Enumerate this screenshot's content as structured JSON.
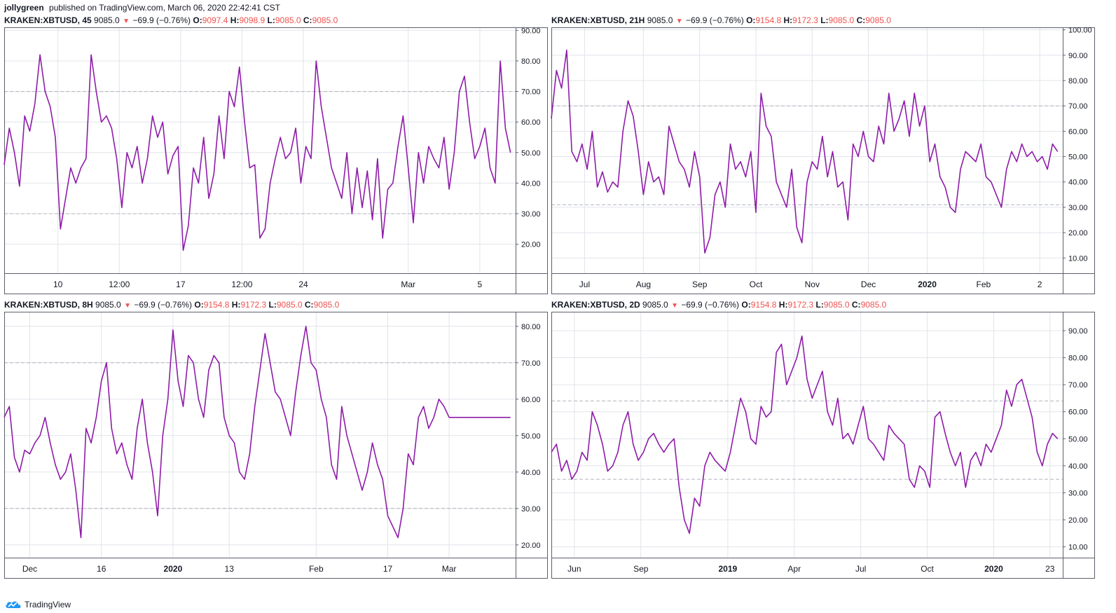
{
  "header": {
    "author": "jollygreen",
    "published_text": "published on TradingView.com, March 06, 2020 22:42:41 CST"
  },
  "footer": {
    "brand": "TradingView"
  },
  "colors": {
    "line": "#8e1ca8",
    "grid": "#e1e4ea",
    "level": "#b0b4bd",
    "down": "#ef5350",
    "frame": "#5d606b"
  },
  "chart_data": [
    {
      "type": "line",
      "title": "KRAKEN:XBTUSD, 45",
      "legend": {
        "price": "9085.0",
        "change": "−69.9 (−0.76%)",
        "o": "9097.4",
        "h": "9098.9",
        "l": "9085.0",
        "c": "9085.0"
      },
      "xticks": [
        {
          "label": "10",
          "x": 0.105
        },
        {
          "label": "12:00",
          "x": 0.225
        },
        {
          "label": "17",
          "x": 0.345
        },
        {
          "label": "12:00",
          "x": 0.465
        },
        {
          "label": "24",
          "x": 0.585
        },
        {
          "label": "Mar",
          "x": 0.79
        },
        {
          "label": "5",
          "x": 0.93
        }
      ],
      "yticks": [
        20,
        30,
        40,
        50,
        60,
        70,
        80,
        90
      ],
      "ylim": [
        10.5,
        91
      ],
      "levels": [
        70,
        30
      ],
      "x": [
        0,
        0.01,
        0.02,
        0.03,
        0.04,
        0.05,
        0.06,
        0.07,
        0.08,
        0.09,
        0.1,
        0.11,
        0.12,
        0.13,
        0.14,
        0.15,
        0.16,
        0.17,
        0.18,
        0.19,
        0.2,
        0.21,
        0.22,
        0.23,
        0.24,
        0.25,
        0.26,
        0.27,
        0.28,
        0.29,
        0.3,
        0.31,
        0.32,
        0.33,
        0.34,
        0.35,
        0.36,
        0.37,
        0.38,
        0.39,
        0.4,
        0.41,
        0.42,
        0.43,
        0.44,
        0.45,
        0.46,
        0.47,
        0.48,
        0.49,
        0.5,
        0.51,
        0.52,
        0.53,
        0.54,
        0.55,
        0.56,
        0.57,
        0.58,
        0.59,
        0.6,
        0.61,
        0.62,
        0.63,
        0.64,
        0.65,
        0.66,
        0.67,
        0.68,
        0.69,
        0.7,
        0.71,
        0.72,
        0.73,
        0.74,
        0.75,
        0.76,
        0.77,
        0.78,
        0.79,
        0.8,
        0.81,
        0.82,
        0.83,
        0.84,
        0.85,
        0.86,
        0.87,
        0.88,
        0.89,
        0.9,
        0.91,
        0.92,
        0.93,
        0.94,
        0.95,
        0.96,
        0.97,
        0.98,
        0.99
      ],
      "y": [
        46,
        58,
        50,
        39,
        62,
        57,
        66,
        82,
        70,
        65,
        55,
        25,
        35,
        45,
        40,
        45,
        48,
        82,
        70,
        60,
        62,
        58,
        48,
        32,
        50,
        45,
        52,
        40,
        48,
        62,
        55,
        60,
        43,
        49,
        52,
        18,
        26,
        45,
        40,
        55,
        35,
        43,
        62,
        48,
        70,
        65,
        78,
        60,
        45,
        46,
        22,
        25,
        40,
        48,
        55,
        48,
        50,
        58,
        40,
        52,
        48,
        80,
        65,
        55,
        45,
        40,
        35,
        50,
        30,
        45,
        32,
        44,
        28,
        48,
        22,
        38,
        40,
        52,
        62,
        45,
        27,
        50,
        40,
        52,
        48,
        45,
        55,
        38,
        50,
        70,
        75,
        60,
        48,
        52,
        58,
        45,
        40,
        80,
        58,
        50
      ]
    },
    {
      "type": "line",
      "title": "KRAKEN:XBTUSD, 21H",
      "legend": {
        "price": "9085.0",
        "change": "−69.9 (−0.76%)",
        "o": "9154.8",
        "h": "9172.3",
        "l": "9085.0",
        "c": "9085.0"
      },
      "xticks": [
        {
          "label": "Jul",
          "x": 0.065
        },
        {
          "label": "Aug",
          "x": 0.18
        },
        {
          "label": "Sep",
          "x": 0.29
        },
        {
          "label": "Oct",
          "x": 0.4
        },
        {
          "label": "Nov",
          "x": 0.51
        },
        {
          "label": "Dec",
          "x": 0.62
        },
        {
          "label": "2020",
          "x": 0.735
        },
        {
          "label": "Feb",
          "x": 0.845
        },
        {
          "label": "2",
          "x": 0.955
        }
      ],
      "yticks": [
        10,
        20,
        30,
        40,
        50,
        60,
        70,
        80,
        90,
        100
      ],
      "ylim": [
        4,
        101
      ],
      "levels": [
        70,
        31
      ],
      "x": [
        0,
        0.01,
        0.02,
        0.03,
        0.04,
        0.05,
        0.06,
        0.07,
        0.08,
        0.09,
        0.1,
        0.11,
        0.12,
        0.13,
        0.14,
        0.15,
        0.16,
        0.17,
        0.18,
        0.19,
        0.2,
        0.21,
        0.22,
        0.23,
        0.24,
        0.25,
        0.26,
        0.27,
        0.28,
        0.29,
        0.3,
        0.31,
        0.32,
        0.33,
        0.34,
        0.35,
        0.36,
        0.37,
        0.38,
        0.39,
        0.4,
        0.41,
        0.42,
        0.43,
        0.44,
        0.45,
        0.46,
        0.47,
        0.48,
        0.49,
        0.5,
        0.51,
        0.52,
        0.53,
        0.54,
        0.55,
        0.56,
        0.57,
        0.58,
        0.59,
        0.6,
        0.61,
        0.62,
        0.63,
        0.64,
        0.65,
        0.66,
        0.67,
        0.68,
        0.69,
        0.7,
        0.71,
        0.72,
        0.73,
        0.74,
        0.75,
        0.76,
        0.77,
        0.78,
        0.79,
        0.8,
        0.81,
        0.82,
        0.83,
        0.84,
        0.85,
        0.86,
        0.87,
        0.88,
        0.89,
        0.9,
        0.91,
        0.92,
        0.93,
        0.94,
        0.95,
        0.96,
        0.97,
        0.98,
        0.99
      ],
      "y": [
        65,
        84,
        77,
        92,
        52,
        48,
        55,
        45,
        60,
        38,
        44,
        36,
        40,
        38,
        60,
        72,
        66,
        52,
        35,
        48,
        40,
        42,
        35,
        62,
        55,
        48,
        45,
        38,
        52,
        42,
        12,
        18,
        35,
        40,
        30,
        55,
        45,
        48,
        42,
        52,
        28,
        75,
        62,
        58,
        40,
        35,
        30,
        45,
        22,
        16,
        40,
        48,
        45,
        58,
        42,
        52,
        38,
        40,
        25,
        55,
        50,
        60,
        50,
        48,
        62,
        55,
        75,
        60,
        65,
        72,
        58,
        75,
        62,
        70,
        48,
        55,
        42,
        38,
        30,
        28,
        45,
        52,
        50,
        48,
        55,
        42,
        40,
        35,
        30,
        45,
        52,
        48,
        55,
        50,
        52,
        48,
        50,
        45,
        55,
        52
      ]
    },
    {
      "type": "line",
      "title": "KRAKEN:XBTUSD, 8H",
      "legend": {
        "price": "9085.0",
        "change": "−69.9 (−0.76%)",
        "o": "9154.8",
        "h": "9172.3",
        "l": "9085.0",
        "c": "9085.0"
      },
      "xticks": [
        {
          "label": "Dec",
          "x": 0.05
        },
        {
          "label": "16",
          "x": 0.19
        },
        {
          "label": "2020",
          "x": 0.33
        },
        {
          "label": "13",
          "x": 0.44
        },
        {
          "label": "Feb",
          "x": 0.61
        },
        {
          "label": "17",
          "x": 0.75
        },
        {
          "label": "Mar",
          "x": 0.87
        }
      ],
      "yticks": [
        20,
        30,
        40,
        50,
        60,
        70,
        80
      ],
      "ylim": [
        16.5,
        84
      ],
      "levels": [
        70,
        30
      ],
      "x": [
        0,
        0.01,
        0.02,
        0.03,
        0.04,
        0.05,
        0.06,
        0.07,
        0.08,
        0.09,
        0.1,
        0.11,
        0.12,
        0.13,
        0.14,
        0.15,
        0.16,
        0.17,
        0.18,
        0.19,
        0.2,
        0.21,
        0.22,
        0.23,
        0.24,
        0.25,
        0.26,
        0.27,
        0.28,
        0.29,
        0.3,
        0.31,
        0.32,
        0.33,
        0.34,
        0.35,
        0.36,
        0.37,
        0.38,
        0.39,
        0.4,
        0.41,
        0.42,
        0.43,
        0.44,
        0.45,
        0.46,
        0.47,
        0.48,
        0.49,
        0.5,
        0.51,
        0.52,
        0.53,
        0.54,
        0.55,
        0.56,
        0.57,
        0.58,
        0.59,
        0.6,
        0.61,
        0.62,
        0.63,
        0.64,
        0.65,
        0.66,
        0.67,
        0.68,
        0.69,
        0.7,
        0.71,
        0.72,
        0.73,
        0.74,
        0.75,
        0.76,
        0.77,
        0.78,
        0.79,
        0.8,
        0.81,
        0.82,
        0.83,
        0.84,
        0.85,
        0.86,
        0.87,
        0.88,
        0.89,
        0.9,
        0.91,
        0.92,
        0.93,
        0.94,
        0.95,
        0.96,
        0.97,
        0.98,
        0.99
      ],
      "y": [
        55,
        58,
        44,
        40,
        46,
        45,
        48,
        50,
        55,
        48,
        42,
        38,
        40,
        45,
        35,
        22,
        52,
        48,
        55,
        65,
        70,
        52,
        45,
        48,
        42,
        38,
        52,
        60,
        48,
        40,
        28,
        50,
        60,
        79,
        65,
        58,
        72,
        70,
        60,
        55,
        68,
        72,
        70,
        55,
        50,
        48,
        40,
        38,
        45,
        58,
        68,
        78,
        70,
        62,
        60,
        55,
        50,
        62,
        72,
        80,
        70,
        68,
        60,
        55,
        42,
        38,
        58,
        50,
        45,
        40,
        35,
        40,
        48,
        42,
        38,
        28,
        25,
        22,
        30,
        45,
        42,
        55,
        58,
        52,
        55,
        60,
        58,
        55,
        55,
        55,
        55,
        55,
        55,
        55,
        55,
        55,
        55,
        55,
        55,
        55
      ]
    },
    {
      "type": "line",
      "title": "KRAKEN:XBTUSD, 2D",
      "legend": {
        "price": "9085.0",
        "change": "−69.9 (−0.76%)",
        "o": "9154.8",
        "h": "9172.3",
        "l": "9085.0",
        "c": "9085.0"
      },
      "xticks": [
        {
          "label": "Jun",
          "x": 0.045
        },
        {
          "label": "Sep",
          "x": 0.175
        },
        {
          "label": "2019",
          "x": 0.345
        },
        {
          "label": "Apr",
          "x": 0.475
        },
        {
          "label": "Jul",
          "x": 0.605
        },
        {
          "label": "Oct",
          "x": 0.735
        },
        {
          "label": "2020",
          "x": 0.865
        },
        {
          "label": "23",
          "x": 0.975
        }
      ],
      "yticks": [
        10,
        20,
        30,
        40,
        50,
        60,
        70,
        80,
        90
      ],
      "ylim": [
        6,
        97
      ],
      "levels": [
        64,
        35
      ],
      "x": [
        0,
        0.01,
        0.02,
        0.03,
        0.04,
        0.05,
        0.06,
        0.07,
        0.08,
        0.09,
        0.1,
        0.11,
        0.12,
        0.13,
        0.14,
        0.15,
        0.16,
        0.17,
        0.18,
        0.19,
        0.2,
        0.21,
        0.22,
        0.23,
        0.24,
        0.25,
        0.26,
        0.27,
        0.28,
        0.29,
        0.3,
        0.31,
        0.32,
        0.33,
        0.34,
        0.35,
        0.36,
        0.37,
        0.38,
        0.39,
        0.4,
        0.41,
        0.42,
        0.43,
        0.44,
        0.45,
        0.46,
        0.47,
        0.48,
        0.49,
        0.5,
        0.51,
        0.52,
        0.53,
        0.54,
        0.55,
        0.56,
        0.57,
        0.58,
        0.59,
        0.6,
        0.61,
        0.62,
        0.63,
        0.64,
        0.65,
        0.66,
        0.67,
        0.68,
        0.69,
        0.7,
        0.71,
        0.72,
        0.73,
        0.74,
        0.75,
        0.76,
        0.77,
        0.78,
        0.79,
        0.8,
        0.81,
        0.82,
        0.83,
        0.84,
        0.85,
        0.86,
        0.87,
        0.88,
        0.89,
        0.9,
        0.91,
        0.92,
        0.93,
        0.94,
        0.95,
        0.96,
        0.97,
        0.98,
        0.99
      ],
      "y": [
        45,
        48,
        38,
        42,
        35,
        38,
        45,
        42,
        60,
        55,
        48,
        38,
        40,
        45,
        55,
        60,
        48,
        42,
        45,
        50,
        52,
        48,
        45,
        48,
        50,
        32,
        20,
        15,
        28,
        25,
        40,
        45,
        42,
        40,
        38,
        45,
        55,
        65,
        60,
        50,
        48,
        62,
        58,
        60,
        82,
        85,
        70,
        75,
        80,
        88,
        72,
        65,
        70,
        75,
        60,
        55,
        65,
        50,
        52,
        48,
        55,
        62,
        50,
        48,
        45,
        42,
        55,
        52,
        50,
        48,
        35,
        32,
        40,
        38,
        32,
        58,
        60,
        52,
        45,
        40,
        45,
        32,
        42,
        45,
        40,
        48,
        45,
        50,
        55,
        68,
        62,
        70,
        72,
        65,
        58,
        45,
        40,
        48,
        52,
        50
      ]
    }
  ]
}
